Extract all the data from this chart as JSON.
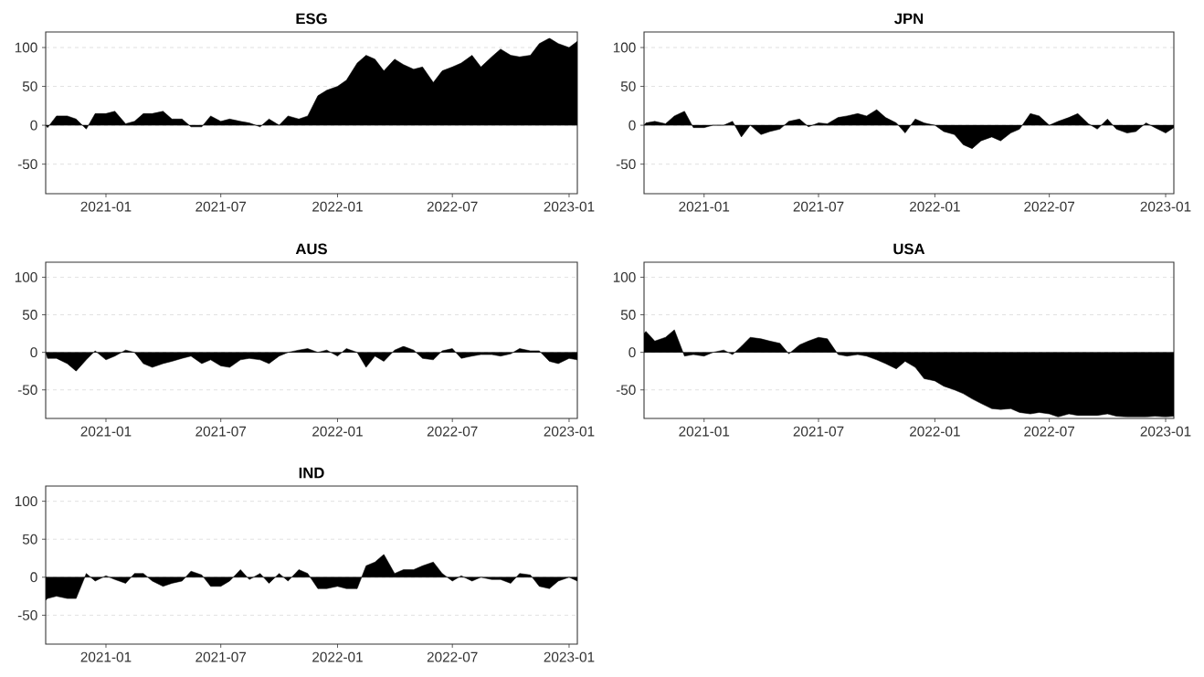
{
  "chart_data": [
    {
      "type": "area",
      "title": "ESG",
      "color": "#000000",
      "grid": "y",
      "xlim": [
        "2020-09-28",
        "2023-01-14"
      ],
      "ylim": [
        -88,
        120
      ],
      "xticks": [
        "2021-01",
        "2021-07",
        "2022-01",
        "2022-07",
        "2023-01"
      ],
      "yticks": [
        -50,
        0,
        50,
        100
      ],
      "x": [
        "2020-09-28",
        "2020-10-01",
        "2020-10-15",
        "2020-11-01",
        "2020-11-15",
        "2020-12-01",
        "2020-12-15",
        "2021-01-01",
        "2021-01-15",
        "2021-02-01",
        "2021-02-15",
        "2021-03-01",
        "2021-03-15",
        "2021-04-01",
        "2021-04-15",
        "2021-05-01",
        "2021-05-15",
        "2021-06-01",
        "2021-06-15",
        "2021-07-01",
        "2021-07-15",
        "2021-08-01",
        "2021-08-15",
        "2021-09-01",
        "2021-09-15",
        "2021-10-01",
        "2021-10-15",
        "2021-11-01",
        "2021-11-15",
        "2021-12-01",
        "2021-12-15",
        "2022-01-01",
        "2022-01-15",
        "2022-02-01",
        "2022-02-15",
        "2022-03-01",
        "2022-03-15",
        "2022-04-01",
        "2022-04-15",
        "2022-05-01",
        "2022-05-15",
        "2022-06-01",
        "2022-06-15",
        "2022-07-01",
        "2022-07-15",
        "2022-08-01",
        "2022-08-15",
        "2022-09-01",
        "2022-09-15",
        "2022-10-01",
        "2022-10-15",
        "2022-11-01",
        "2022-11-15",
        "2022-12-01",
        "2022-12-15",
        "2023-01-01",
        "2023-01-14"
      ],
      "values": [
        0,
        -3,
        12,
        12,
        8,
        -5,
        15,
        15,
        18,
        2,
        5,
        15,
        15,
        18,
        8,
        8,
        -2,
        -2,
        12,
        5,
        8,
        5,
        3,
        -2,
        8,
        0,
        12,
        8,
        12,
        38,
        45,
        50,
        58,
        80,
        90,
        85,
        70,
        85,
        78,
        72,
        75,
        55,
        70,
        75,
        80,
        90,
        75,
        88,
        98,
        90,
        88,
        90,
        105,
        112,
        105,
        100,
        108
      ]
    },
    {
      "type": "area",
      "title": "JPN",
      "color": "#000000",
      "grid": "y",
      "xlim": [
        "2020-09-28",
        "2023-01-14"
      ],
      "ylim": [
        -88,
        120
      ],
      "xticks": [
        "2021-01",
        "2021-07",
        "2022-01",
        "2022-07",
        "2023-01"
      ],
      "yticks": [
        -50,
        0,
        50,
        100
      ],
      "x": [
        "2020-09-28",
        "2020-10-01",
        "2020-10-15",
        "2020-11-01",
        "2020-11-15",
        "2020-12-01",
        "2020-12-15",
        "2021-01-01",
        "2021-01-15",
        "2021-02-01",
        "2021-02-15",
        "2021-03-01",
        "2021-03-15",
        "2021-04-01",
        "2021-04-15",
        "2021-05-01",
        "2021-05-15",
        "2021-06-01",
        "2021-06-15",
        "2021-07-01",
        "2021-07-15",
        "2021-08-01",
        "2021-08-15",
        "2021-09-01",
        "2021-09-15",
        "2021-10-01",
        "2021-10-15",
        "2021-11-01",
        "2021-11-15",
        "2021-12-01",
        "2021-12-15",
        "2022-01-01",
        "2022-01-15",
        "2022-02-01",
        "2022-02-15",
        "2022-03-01",
        "2022-03-15",
        "2022-04-01",
        "2022-04-15",
        "2022-05-01",
        "2022-05-15",
        "2022-06-01",
        "2022-06-15",
        "2022-07-01",
        "2022-07-15",
        "2022-08-01",
        "2022-08-15",
        "2022-09-01",
        "2022-09-15",
        "2022-10-01",
        "2022-10-15",
        "2022-11-01",
        "2022-11-15",
        "2022-12-01",
        "2022-12-15",
        "2023-01-01",
        "2023-01-14"
      ],
      "values": [
        0,
        3,
        5,
        2,
        12,
        18,
        -3,
        -3,
        0,
        0,
        5,
        -15,
        0,
        -12,
        -8,
        -5,
        5,
        8,
        -2,
        3,
        2,
        10,
        12,
        15,
        12,
        20,
        10,
        3,
        -10,
        8,
        3,
        0,
        -8,
        -12,
        -25,
        -30,
        -20,
        -15,
        -20,
        -10,
        -5,
        15,
        12,
        0,
        5,
        10,
        15,
        2,
        -5,
        8,
        -5,
        -10,
        -8,
        3,
        -3,
        -10,
        -3
      ]
    },
    {
      "type": "area",
      "title": "AUS",
      "color": "#000000",
      "grid": "y",
      "xlim": [
        "2020-09-28",
        "2023-01-14"
      ],
      "ylim": [
        -88,
        120
      ],
      "xticks": [
        "2021-01",
        "2021-07",
        "2022-01",
        "2022-07",
        "2023-01"
      ],
      "yticks": [
        -50,
        0,
        50,
        100
      ],
      "x": [
        "2020-09-28",
        "2020-10-01",
        "2020-10-15",
        "2020-11-01",
        "2020-11-15",
        "2020-12-01",
        "2020-12-15",
        "2021-01-01",
        "2021-01-15",
        "2021-02-01",
        "2021-02-15",
        "2021-03-01",
        "2021-03-15",
        "2021-04-01",
        "2021-04-15",
        "2021-05-01",
        "2021-05-15",
        "2021-06-01",
        "2021-06-15",
        "2021-07-01",
        "2021-07-15",
        "2021-08-01",
        "2021-08-15",
        "2021-09-01",
        "2021-09-15",
        "2021-10-01",
        "2021-10-15",
        "2021-11-01",
        "2021-11-15",
        "2021-12-01",
        "2021-12-15",
        "2022-01-01",
        "2022-01-15",
        "2022-02-01",
        "2022-02-15",
        "2022-03-01",
        "2022-03-15",
        "2022-04-01",
        "2022-04-15",
        "2022-05-01",
        "2022-05-15",
        "2022-06-01",
        "2022-06-15",
        "2022-07-01",
        "2022-07-15",
        "2022-08-01",
        "2022-08-15",
        "2022-09-01",
        "2022-09-15",
        "2022-10-01",
        "2022-10-15",
        "2022-11-01",
        "2022-11-15",
        "2022-12-01",
        "2022-12-15",
        "2023-01-01",
        "2023-01-14"
      ],
      "values": [
        0,
        -8,
        -8,
        -15,
        -25,
        -10,
        2,
        -10,
        -5,
        3,
        0,
        -15,
        -20,
        -15,
        -12,
        -8,
        -5,
        -15,
        -10,
        -18,
        -20,
        -10,
        -8,
        -10,
        -15,
        -5,
        0,
        3,
        5,
        0,
        3,
        -5,
        5,
        0,
        -20,
        -5,
        -12,
        3,
        8,
        3,
        -8,
        -10,
        2,
        5,
        -8,
        -5,
        -3,
        -3,
        -5,
        -2,
        5,
        2,
        2,
        -12,
        -15,
        -8,
        -10
      ]
    },
    {
      "type": "area",
      "title": "USA",
      "color": "#000000",
      "grid": "y",
      "xlim": [
        "2020-09-28",
        "2023-01-14"
      ],
      "ylim": [
        -88,
        120
      ],
      "xticks": [
        "2021-01",
        "2021-07",
        "2022-01",
        "2022-07",
        "2023-01"
      ],
      "yticks": [
        -50,
        0,
        50,
        100
      ],
      "x": [
        "2020-09-28",
        "2020-10-01",
        "2020-10-15",
        "2020-11-01",
        "2020-11-15",
        "2020-12-01",
        "2020-12-15",
        "2021-01-01",
        "2021-01-15",
        "2021-02-01",
        "2021-02-15",
        "2021-03-01",
        "2021-03-15",
        "2021-04-01",
        "2021-04-15",
        "2021-05-01",
        "2021-05-15",
        "2021-06-01",
        "2021-06-15",
        "2021-07-01",
        "2021-07-15",
        "2021-08-01",
        "2021-08-15",
        "2021-09-01",
        "2021-09-15",
        "2021-10-01",
        "2021-10-15",
        "2021-11-01",
        "2021-11-15",
        "2021-12-01",
        "2021-12-15",
        "2022-01-01",
        "2022-01-15",
        "2022-02-01",
        "2022-02-15",
        "2022-03-01",
        "2022-03-15",
        "2022-04-01",
        "2022-04-15",
        "2022-05-01",
        "2022-05-15",
        "2022-06-01",
        "2022-06-15",
        "2022-07-01",
        "2022-07-15",
        "2022-08-01",
        "2022-08-15",
        "2022-09-01",
        "2022-09-15",
        "2022-10-01",
        "2022-10-15",
        "2022-11-01",
        "2022-11-15",
        "2022-12-01",
        "2022-12-15",
        "2023-01-01",
        "2023-01-14"
      ],
      "values": [
        25,
        28,
        15,
        20,
        30,
        -5,
        -3,
        -5,
        0,
        3,
        -3,
        8,
        20,
        18,
        15,
        12,
        -2,
        10,
        15,
        20,
        18,
        -3,
        -5,
        -3,
        -5,
        -10,
        -15,
        -22,
        -12,
        -20,
        -35,
        -38,
        -45,
        -50,
        -55,
        -62,
        -68,
        -75,
        -76,
        -75,
        -80,
        -82,
        -80,
        -82,
        -86,
        -82,
        -84,
        -84,
        -84,
        -82,
        -85,
        -86,
        -86,
        -86,
        -85,
        -86,
        -85
      ]
    },
    {
      "type": "area",
      "title": "IND",
      "color": "#000000",
      "grid": "y",
      "xlim": [
        "2020-09-28",
        "2023-01-14"
      ],
      "ylim": [
        -88,
        120
      ],
      "xticks": [
        "2021-01",
        "2021-07",
        "2022-01",
        "2022-07",
        "2023-01"
      ],
      "yticks": [
        -50,
        0,
        50,
        100
      ],
      "x": [
        "2020-09-28",
        "2020-10-01",
        "2020-10-15",
        "2020-11-01",
        "2020-11-15",
        "2020-12-01",
        "2020-12-15",
        "2021-01-01",
        "2021-01-15",
        "2021-02-01",
        "2021-02-15",
        "2021-03-01",
        "2021-03-15",
        "2021-04-01",
        "2021-04-15",
        "2021-05-01",
        "2021-05-15",
        "2021-06-01",
        "2021-06-15",
        "2021-07-01",
        "2021-07-15",
        "2021-08-01",
        "2021-08-15",
        "2021-09-01",
        "2021-09-15",
        "2021-10-01",
        "2021-10-15",
        "2021-11-01",
        "2021-11-15",
        "2021-12-01",
        "2021-12-15",
        "2022-01-01",
        "2022-01-15",
        "2022-02-01",
        "2022-02-15",
        "2022-03-01",
        "2022-03-15",
        "2022-04-01",
        "2022-04-15",
        "2022-05-01",
        "2022-05-15",
        "2022-06-01",
        "2022-06-15",
        "2022-07-01",
        "2022-07-15",
        "2022-08-01",
        "2022-08-15",
        "2022-09-01",
        "2022-09-15",
        "2022-10-01",
        "2022-10-15",
        "2022-11-01",
        "2022-11-15",
        "2022-12-01",
        "2022-12-15",
        "2023-01-01",
        "2023-01-14"
      ],
      "values": [
        -30,
        -28,
        -25,
        -28,
        -28,
        5,
        -5,
        2,
        -3,
        -8,
        5,
        5,
        -5,
        -12,
        -8,
        -5,
        8,
        3,
        -12,
        -12,
        -5,
        10,
        -3,
        5,
        -8,
        5,
        -5,
        10,
        5,
        -15,
        -15,
        -12,
        -15,
        -15,
        15,
        20,
        30,
        5,
        10,
        10,
        15,
        20,
        5,
        -5,
        2,
        -5,
        0,
        -3,
        -3,
        -8,
        5,
        3,
        -12,
        -15,
        -5,
        0,
        -5
      ]
    }
  ]
}
